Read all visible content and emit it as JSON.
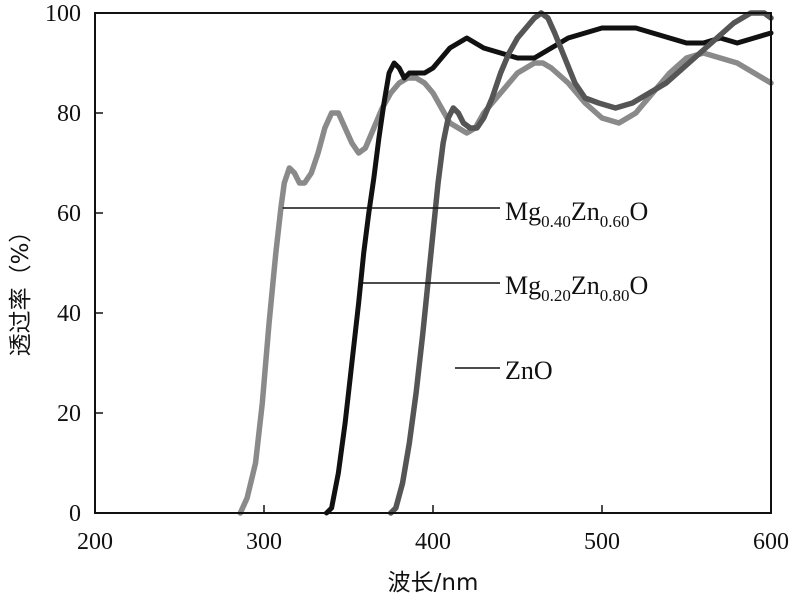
{
  "chart_data": {
    "type": "line",
    "title": "",
    "xlabel": "波长/nm",
    "ylabel": "透过率（%）",
    "xlim": [
      200,
      600
    ],
    "ylim": [
      0,
      100
    ],
    "x_ticks": [
      200,
      300,
      400,
      500,
      600
    ],
    "y_ticks": [
      0,
      20,
      40,
      60,
      80,
      100
    ],
    "grid": false,
    "series": [
      {
        "name": "Mg0.40Zn0.60O",
        "label_parts": {
          "a": "Mg",
          "a_sub": "0.40",
          "b": "Zn",
          "b_sub": "0.60",
          "c": "O"
        },
        "label_anchor": [
          311,
          61
        ],
        "color": "#8a8a8a",
        "points": [
          [
            286,
            0
          ],
          [
            290,
            3
          ],
          [
            295,
            10
          ],
          [
            299,
            22
          ],
          [
            303,
            38
          ],
          [
            307,
            52
          ],
          [
            310,
            61
          ],
          [
            312,
            66
          ],
          [
            315,
            69
          ],
          [
            318,
            68
          ],
          [
            321,
            66
          ],
          [
            324,
            66
          ],
          [
            328,
            68
          ],
          [
            332,
            72
          ],
          [
            336,
            77
          ],
          [
            340,
            80
          ],
          [
            344,
            80
          ],
          [
            348,
            77
          ],
          [
            352,
            74
          ],
          [
            356,
            72
          ],
          [
            360,
            73
          ],
          [
            365,
            77
          ],
          [
            370,
            81
          ],
          [
            375,
            84
          ],
          [
            380,
            86
          ],
          [
            385,
            87
          ],
          [
            390,
            87
          ],
          [
            395,
            86
          ],
          [
            400,
            84
          ],
          [
            405,
            81
          ],
          [
            410,
            78
          ],
          [
            415,
            77
          ],
          [
            420,
            76
          ],
          [
            425,
            77
          ],
          [
            430,
            80
          ],
          [
            440,
            84
          ],
          [
            450,
            88
          ],
          [
            460,
            90
          ],
          [
            465,
            90
          ],
          [
            470,
            89
          ],
          [
            480,
            86
          ],
          [
            490,
            82
          ],
          [
            500,
            79
          ],
          [
            510,
            78
          ],
          [
            520,
            80
          ],
          [
            530,
            84
          ],
          [
            540,
            88
          ],
          [
            550,
            91
          ],
          [
            560,
            92
          ],
          [
            570,
            91
          ],
          [
            580,
            90
          ],
          [
            590,
            88
          ],
          [
            600,
            86
          ]
        ]
      },
      {
        "name": "Mg0.20Zn0.80O",
        "label_parts": {
          "a": "Mg",
          "a_sub": "0.20",
          "b": "Zn",
          "b_sub": "0.80",
          "c": "O"
        },
        "label_anchor": [
          358,
          46
        ],
        "color": "#111111",
        "points": [
          [
            337,
            0
          ],
          [
            340,
            1
          ],
          [
            344,
            8
          ],
          [
            348,
            18
          ],
          [
            352,
            30
          ],
          [
            356,
            42
          ],
          [
            359,
            52
          ],
          [
            362,
            60
          ],
          [
            365,
            67
          ],
          [
            368,
            75
          ],
          [
            371,
            82
          ],
          [
            374,
            88
          ],
          [
            377,
            90
          ],
          [
            380,
            89
          ],
          [
            383,
            87
          ],
          [
            386,
            88
          ],
          [
            390,
            88
          ],
          [
            395,
            88
          ],
          [
            400,
            89
          ],
          [
            405,
            91
          ],
          [
            410,
            93
          ],
          [
            415,
            94
          ],
          [
            420,
            95
          ],
          [
            425,
            94
          ],
          [
            430,
            93
          ],
          [
            440,
            92
          ],
          [
            450,
            91
          ],
          [
            460,
            91
          ],
          [
            470,
            93
          ],
          [
            480,
            95
          ],
          [
            490,
            96
          ],
          [
            500,
            97
          ],
          [
            510,
            97
          ],
          [
            520,
            97
          ],
          [
            530,
            96
          ],
          [
            540,
            95
          ],
          [
            550,
            94
          ],
          [
            560,
            94
          ],
          [
            570,
            95
          ],
          [
            580,
            94
          ],
          [
            590,
            95
          ],
          [
            600,
            96
          ]
        ]
      },
      {
        "name": "ZnO",
        "label_parts": {
          "a": "ZnO"
        },
        "label_anchor": [
          413,
          29
        ],
        "color": "#555555",
        "points": [
          [
            375,
            0
          ],
          [
            378,
            1
          ],
          [
            382,
            6
          ],
          [
            386,
            14
          ],
          [
            390,
            24
          ],
          [
            394,
            36
          ],
          [
            397,
            46
          ],
          [
            400,
            56
          ],
          [
            403,
            66
          ],
          [
            406,
            74
          ],
          [
            409,
            79
          ],
          [
            412,
            81
          ],
          [
            415,
            80
          ],
          [
            418,
            78
          ],
          [
            422,
            77
          ],
          [
            426,
            77
          ],
          [
            430,
            79
          ],
          [
            435,
            83
          ],
          [
            440,
            88
          ],
          [
            445,
            92
          ],
          [
            450,
            95
          ],
          [
            455,
            97
          ],
          [
            460,
            99
          ],
          [
            464,
            100
          ],
          [
            468,
            99
          ],
          [
            472,
            96
          ],
          [
            478,
            91
          ],
          [
            484,
            86
          ],
          [
            490,
            83
          ],
          [
            498,
            82
          ],
          [
            508,
            81
          ],
          [
            518,
            82
          ],
          [
            528,
            84
          ],
          [
            538,
            86
          ],
          [
            548,
            89
          ],
          [
            558,
            92
          ],
          [
            568,
            95
          ],
          [
            578,
            98
          ],
          [
            588,
            100
          ],
          [
            596,
            100
          ],
          [
            600,
            99
          ]
        ]
      }
    ]
  }
}
